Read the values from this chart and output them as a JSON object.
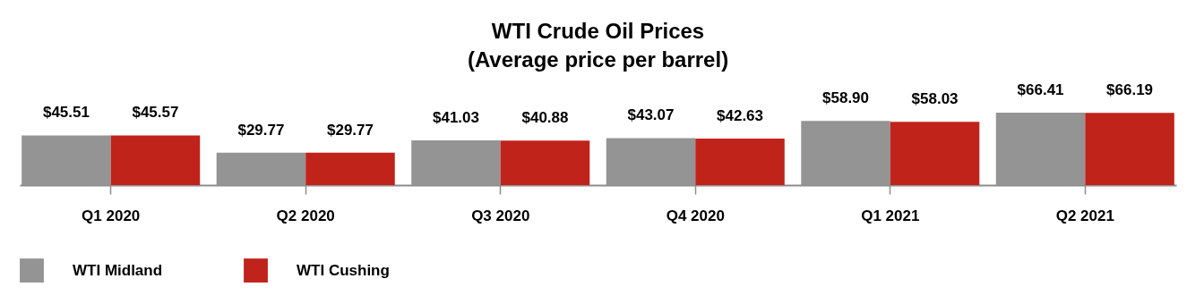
{
  "chart_data": {
    "type": "bar",
    "title": "WTI Crude Oil Prices",
    "subtitle": "(Average price per barrel)",
    "categories": [
      "Q1 2020",
      "Q2 2020",
      "Q3 2020",
      "Q4 2020",
      "Q1 2021",
      "Q2 2021"
    ],
    "series": [
      {
        "name": "WTI Midland",
        "color": "#949494",
        "values": [
          45.51,
          29.77,
          41.03,
          43.07,
          58.9,
          66.41
        ],
        "value_labels": [
          "$45.51",
          "$29.77",
          "$41.03",
          "$43.07",
          "$58.90",
          "$66.41"
        ]
      },
      {
        "name": "WTI Cushing",
        "color": "#c0231a",
        "values": [
          45.57,
          29.77,
          40.88,
          42.63,
          58.03,
          66.19
        ],
        "value_labels": [
          "$45.57",
          "$29.77",
          "$40.88",
          "$42.63",
          "$58.03",
          "$66.19"
        ]
      }
    ],
    "legend": "bottom",
    "grid": false
  }
}
